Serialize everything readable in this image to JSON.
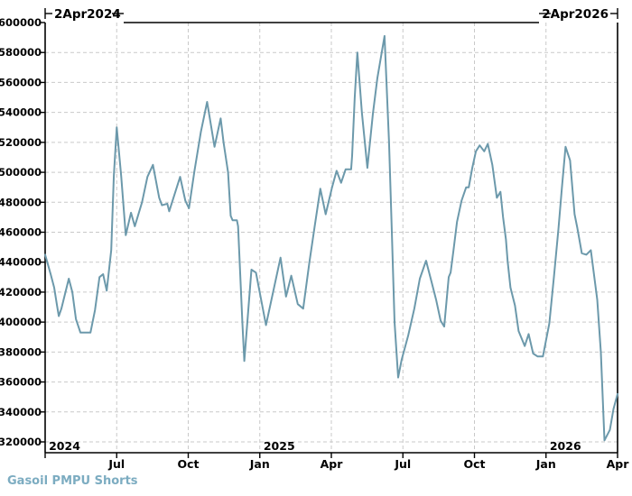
{
  "header": {
    "range_start_label": "2Apr2024",
    "range_end_label": "2Apr2026"
  },
  "footer": {
    "series_label": "Gasoil PMPU Shorts",
    "series_label_color": "#7cacc1"
  },
  "colors": {
    "line": "#6c99ab",
    "grid": "#c9c9c9",
    "axis": "#000000",
    "background": "#ffffff"
  },
  "chart_data": {
    "type": "line",
    "title": "",
    "xlabel": "",
    "ylabel": "",
    "legend": "none",
    "grid": "dashed",
    "x_axis": {
      "start_label": "2Apr2024",
      "end_label": "2Apr2026",
      "unit": "months_from_start",
      "range": [
        0,
        24
      ],
      "ticks": [
        {
          "t": 3,
          "label": "Jul"
        },
        {
          "t": 6,
          "label": "Oct"
        },
        {
          "t": 9,
          "label": "Jan"
        },
        {
          "t": 12,
          "label": "Apr"
        },
        {
          "t": 15,
          "label": "Jul"
        },
        {
          "t": 18,
          "label": "Oct"
        },
        {
          "t": 21,
          "label": "Jan"
        },
        {
          "t": 24,
          "label": "Apr"
        }
      ],
      "year_labels": [
        {
          "t": 0.08,
          "label": "2024"
        },
        {
          "t": 9.08,
          "label": "2025"
        },
        {
          "t": 21.08,
          "label": "2026"
        }
      ]
    },
    "y_axis": {
      "tick_values": [
        600000,
        580000,
        560000,
        540000,
        520000,
        500000,
        480000,
        460000,
        440000,
        420000,
        400000,
        380000,
        360000,
        340000,
        320000
      ],
      "tick_labels": [
        "600000",
        "580000",
        "560000",
        "540000",
        "520000",
        "500000",
        "480000",
        "460000",
        "440000",
        "420000",
        "400000",
        "380000",
        "360000",
        "340000",
        "320000"
      ],
      "label_min": 320000,
      "label_max": 600000,
      "tick_step": 20000
    },
    "series": [
      {
        "name": "Gasoil PMPU Shorts",
        "color": "#6c99ab",
        "points": [
          [
            0,
            445000
          ],
          [
            0.23,
            432000
          ],
          [
            0.38,
            423000
          ],
          [
            0.49,
            412000
          ],
          [
            0.57,
            404000
          ],
          [
            0.68,
            409000
          ],
          [
            0.99,
            429000
          ],
          [
            1.14,
            420000
          ],
          [
            1.29,
            402000
          ],
          [
            1.48,
            393000
          ],
          [
            1.9,
            393000
          ],
          [
            2.09,
            408000
          ],
          [
            2.28,
            430000
          ],
          [
            2.43,
            432000
          ],
          [
            2.58,
            421000
          ],
          [
            2.77,
            448000
          ],
          [
            2.88,
            498000
          ],
          [
            3,
            530000
          ],
          [
            3.19,
            497000
          ],
          [
            3.38,
            458000
          ],
          [
            3.6,
            473000
          ],
          [
            3.76,
            464000
          ],
          [
            4.06,
            480000
          ],
          [
            4.29,
            497000
          ],
          [
            4.52,
            505000
          ],
          [
            4.78,
            483000
          ],
          [
            4.9,
            478000
          ],
          [
            5.12,
            479000
          ],
          [
            5.2,
            474000
          ],
          [
            5.66,
            497000
          ],
          [
            5.88,
            481000
          ],
          [
            6.03,
            476000
          ],
          [
            6.26,
            501000
          ],
          [
            6.53,
            527000
          ],
          [
            6.79,
            547000
          ],
          [
            7.1,
            517000
          ],
          [
            7.36,
            536000
          ],
          [
            7.48,
            520000
          ],
          [
            7.67,
            500000
          ],
          [
            7.78,
            471000
          ],
          [
            7.86,
            468000
          ],
          [
            8.04,
            468000
          ],
          [
            8.09,
            464000
          ],
          [
            8.27,
            399000
          ],
          [
            8.35,
            374000
          ],
          [
            8.65,
            435000
          ],
          [
            8.84,
            433000
          ],
          [
            9.26,
            398000
          ],
          [
            9.87,
            443000
          ],
          [
            10.1,
            417000
          ],
          [
            10.32,
            431000
          ],
          [
            10.59,
            412000
          ],
          [
            10.82,
            409000
          ],
          [
            11.08,
            440000
          ],
          [
            11.31,
            465000
          ],
          [
            11.54,
            489000
          ],
          [
            11.76,
            472000
          ],
          [
            12.03,
            490000
          ],
          [
            12.22,
            501000
          ],
          [
            12.41,
            493000
          ],
          [
            12.6,
            502000
          ],
          [
            12.83,
            502000
          ],
          [
            12.87,
            511000
          ],
          [
            12.98,
            550000
          ],
          [
            13.09,
            580000
          ],
          [
            13.28,
            540000
          ],
          [
            13.51,
            503000
          ],
          [
            13.74,
            539000
          ],
          [
            13.93,
            563000
          ],
          [
            14.23,
            591000
          ],
          [
            14.42,
            520000
          ],
          [
            14.53,
            464000
          ],
          [
            14.65,
            400000
          ],
          [
            14.8,
            363000
          ],
          [
            14.95,
            375000
          ],
          [
            15.22,
            391000
          ],
          [
            15.48,
            409000
          ],
          [
            15.71,
            429000
          ],
          [
            15.97,
            441000
          ],
          [
            16.2,
            427000
          ],
          [
            16.39,
            415000
          ],
          [
            16.58,
            401000
          ],
          [
            16.73,
            397000
          ],
          [
            16.92,
            430000
          ],
          [
            17,
            433000
          ],
          [
            17.12,
            448000
          ],
          [
            17.27,
            467000
          ],
          [
            17.46,
            481000
          ],
          [
            17.65,
            490000
          ],
          [
            17.76,
            490000
          ],
          [
            17.91,
            503000
          ],
          [
            18.06,
            514000
          ],
          [
            18.22,
            518000
          ],
          [
            18.41,
            514000
          ],
          [
            18.56,
            519000
          ],
          [
            18.75,
            505000
          ],
          [
            18.94,
            483000
          ],
          [
            19.09,
            487000
          ],
          [
            19.2,
            470000
          ],
          [
            19.32,
            455000
          ],
          [
            19.39,
            441000
          ],
          [
            19.51,
            423000
          ],
          [
            19.7,
            411000
          ],
          [
            19.85,
            394000
          ],
          [
            20.11,
            384000
          ],
          [
            20.27,
            392000
          ],
          [
            20.46,
            379000
          ],
          [
            20.65,
            377000
          ],
          [
            20.87,
            377000
          ],
          [
            21.14,
            399000
          ],
          [
            21.33,
            430000
          ],
          [
            21.52,
            462000
          ],
          [
            21.67,
            490000
          ],
          [
            21.82,
            517000
          ],
          [
            22.01,
            508000
          ],
          [
            22.2,
            472000
          ],
          [
            22.31,
            463000
          ],
          [
            22.5,
            446000
          ],
          [
            22.69,
            445000
          ],
          [
            22.88,
            448000
          ],
          [
            23.15,
            415000
          ],
          [
            23.3,
            380000
          ],
          [
            23.45,
            321000
          ],
          [
            23.68,
            328000
          ],
          [
            23.83,
            342000
          ],
          [
            24,
            352000
          ]
        ]
      }
    ]
  }
}
